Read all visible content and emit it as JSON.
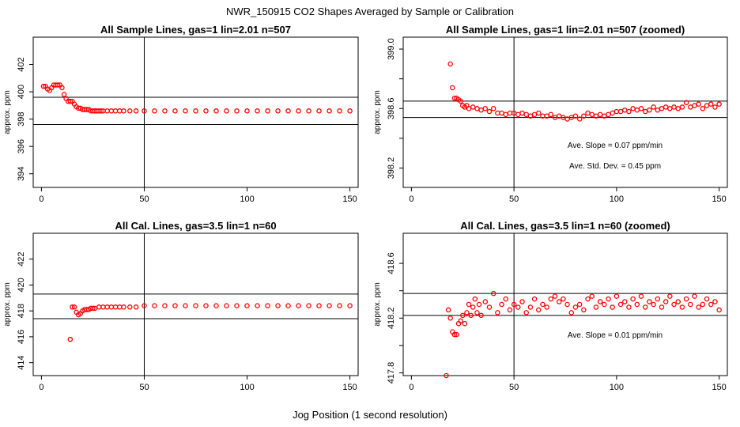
{
  "figure": {
    "title": "NWR_150915  CO2 Shapes Averaged by Sample or Calibration",
    "xlabel": "Jog Position (1 second resolution)"
  },
  "chart_data": [
    {
      "type": "scatter",
      "title": "All Sample Lines, gas=1 lin=2.01 n=507",
      "xlabel": "",
      "ylabel": "approx. ppm",
      "xlim": [
        -4,
        154
      ],
      "ylim": [
        393,
        404
      ],
      "xticks": [
        0,
        50,
        100,
        150
      ],
      "yticks": [
        394,
        396,
        398,
        400,
        402
      ],
      "ref_lines": {
        "vertical": [
          50
        ],
        "horizontal": [
          397.6,
          399.6
        ]
      },
      "marker_color": "#ff0000",
      "series": [
        {
          "values_note": "",
          "x": [
            1,
            2,
            3,
            4,
            5,
            6,
            7,
            8,
            9,
            10,
            11,
            12,
            13,
            14,
            15,
            16,
            17,
            18,
            19,
            20,
            21,
            22,
            23,
            24,
            25,
            26,
            27,
            28,
            29,
            30,
            32,
            34,
            36,
            38,
            40,
            43,
            46,
            50,
            55,
            60,
            65,
            70,
            75,
            80,
            85,
            90,
            95,
            100,
            105,
            110,
            115,
            120,
            125,
            130,
            135,
            140,
            145,
            150
          ],
          "y": [
            400.4,
            400.4,
            400.2,
            400.1,
            400.3,
            400.5,
            400.5,
            400.5,
            400.5,
            400.3,
            399.8,
            399.5,
            399.3,
            399.3,
            399.3,
            399.1,
            398.9,
            398.8,
            398.8,
            398.7,
            398.7,
            398.7,
            398.7,
            398.6,
            398.6,
            398.6,
            398.6,
            398.6,
            398.6,
            398.6,
            398.6,
            398.6,
            398.6,
            398.6,
            398.6,
            398.6,
            398.6,
            398.6,
            398.6,
            398.6,
            398.6,
            398.6,
            398.6,
            398.6,
            398.6,
            398.6,
            398.6,
            398.6,
            398.6,
            398.6,
            398.6,
            398.6,
            398.6,
            398.6,
            398.6,
            398.6,
            398.6,
            398.6
          ]
        }
      ]
    },
    {
      "type": "scatter",
      "title": "All Sample Lines, gas=1 lin=2.01 n=507 (zoomed)",
      "xlabel": "",
      "ylabel": "approx. ppm",
      "xlim": [
        -4,
        154
      ],
      "ylim": [
        398.07,
        399.08
      ],
      "xticks": [
        0,
        50,
        100,
        150
      ],
      "yticks": [
        398.2,
        398.6,
        399.0
      ],
      "minor_yticks": [
        398.4,
        398.8
      ],
      "ref_lines": {
        "vertical": [
          50
        ],
        "horizontal": [
          398.54,
          398.65
        ]
      },
      "annotations": [
        "Ave. Slope =  0.07  ppm/min",
        "Ave. Std. Dev. =  0.45  ppm"
      ],
      "marker_color": "#ff0000",
      "series": [
        {
          "x": [
            19,
            20,
            21,
            22,
            23,
            24,
            25,
            26,
            27,
            28,
            30,
            32,
            34,
            36,
            38,
            40,
            42,
            44,
            46,
            48,
            50,
            52,
            54,
            56,
            58,
            60,
            62,
            64,
            66,
            68,
            70,
            72,
            74,
            76,
            78,
            80,
            82,
            84,
            86,
            88,
            90,
            92,
            94,
            96,
            98,
            100,
            102,
            104,
            106,
            108,
            110,
            112,
            114,
            116,
            118,
            120,
            122,
            124,
            126,
            128,
            130,
            132,
            134,
            136,
            138,
            140,
            142,
            144,
            146,
            148,
            150
          ],
          "y": [
            398.9,
            398.74,
            398.67,
            398.67,
            398.66,
            398.65,
            398.62,
            398.61,
            398.62,
            398.6,
            398.61,
            398.6,
            398.59,
            398.6,
            398.58,
            398.6,
            398.57,
            398.57,
            398.56,
            398.57,
            398.57,
            398.56,
            398.57,
            398.56,
            398.55,
            398.56,
            398.57,
            398.55,
            398.55,
            398.56,
            398.54,
            398.55,
            398.54,
            398.53,
            398.54,
            398.55,
            398.53,
            398.55,
            398.57,
            398.56,
            398.55,
            398.56,
            398.55,
            398.56,
            398.57,
            398.58,
            398.58,
            398.59,
            398.58,
            398.6,
            398.59,
            398.6,
            398.58,
            398.59,
            398.61,
            398.59,
            398.6,
            398.61,
            398.6,
            398.61,
            398.6,
            398.61,
            398.64,
            398.61,
            398.62,
            398.63,
            398.6,
            398.62,
            398.63,
            398.61,
            398.63
          ]
        }
      ]
    },
    {
      "type": "scatter",
      "title": "All Cal. Lines, gas=3.5 lin=1 n=60",
      "xlabel": "",
      "ylabel": "approx. ppm",
      "xlim": [
        -4,
        154
      ],
      "ylim": [
        413,
        424
      ],
      "xticks": [
        0,
        50,
        100,
        150
      ],
      "yticks": [
        414,
        416,
        418,
        420,
        422
      ],
      "ref_lines": {
        "vertical": [
          50
        ],
        "horizontal": [
          417.4,
          419.3
        ]
      },
      "marker_color": "#ff0000",
      "series": [
        {
          "x": [
            14,
            15,
            16,
            17,
            18,
            19,
            20,
            21,
            22,
            23,
            24,
            25,
            26,
            28,
            30,
            32,
            34,
            36,
            38,
            40,
            43,
            46,
            50,
            55,
            60,
            65,
            70,
            75,
            80,
            85,
            90,
            95,
            100,
            105,
            110,
            115,
            120,
            125,
            130,
            135,
            140,
            145,
            150
          ],
          "y": [
            415.8,
            418.3,
            418.3,
            417.9,
            417.7,
            417.8,
            418.0,
            418.1,
            418.1,
            418.1,
            418.2,
            418.2,
            418.2,
            418.3,
            418.3,
            418.3,
            418.3,
            418.3,
            418.3,
            418.3,
            418.3,
            418.3,
            418.4,
            418.4,
            418.4,
            418.4,
            418.4,
            418.4,
            418.4,
            418.4,
            418.4,
            418.4,
            418.4,
            418.4,
            418.4,
            418.4,
            418.4,
            418.4,
            418.4,
            418.4,
            418.4,
            418.4,
            418.4
          ]
        }
      ]
    },
    {
      "type": "scatter",
      "title": "All Cal. Lines, gas=3.5 lin=1 n=60 (zoomed)",
      "xlabel": "",
      "ylabel": "approx. ppm",
      "xlim": [
        -4,
        154
      ],
      "ylim": [
        417.78,
        418.82
      ],
      "xticks": [
        0,
        50,
        100,
        150
      ],
      "yticks": [
        417.8,
        418.2,
        418.6
      ],
      "minor_yticks": [
        418.0,
        418.4
      ],
      "ref_lines": {
        "vertical": [
          50
        ],
        "horizontal": [
          418.22,
          418.38
        ]
      },
      "annotations": [
        "Ave. Slope =  0.01  ppm/min"
      ],
      "marker_color": "#ff0000",
      "series": [
        {
          "x": [
            17,
            18,
            19,
            20,
            21,
            22,
            23,
            24,
            25,
            26,
            27,
            28,
            29,
            30,
            31,
            32,
            33,
            34,
            36,
            38,
            40,
            42,
            44,
            46,
            48,
            50,
            52,
            54,
            56,
            58,
            60,
            62,
            64,
            66,
            68,
            70,
            72,
            74,
            76,
            78,
            80,
            82,
            84,
            86,
            88,
            90,
            92,
            94,
            96,
            98,
            100,
            102,
            104,
            106,
            108,
            110,
            112,
            114,
            116,
            118,
            120,
            122,
            124,
            126,
            128,
            130,
            132,
            134,
            136,
            138,
            140,
            142,
            144,
            146,
            148,
            150
          ],
          "y": [
            417.78,
            418.26,
            418.2,
            418.1,
            418.08,
            418.08,
            418.16,
            418.18,
            418.22,
            418.16,
            418.24,
            418.3,
            418.22,
            418.28,
            418.34,
            418.24,
            418.3,
            418.22,
            418.32,
            418.28,
            418.38,
            418.24,
            418.3,
            418.34,
            418.26,
            418.3,
            418.28,
            418.32,
            418.24,
            418.28,
            418.34,
            418.26,
            418.3,
            418.28,
            418.34,
            418.36,
            418.32,
            418.34,
            418.3,
            418.24,
            418.28,
            418.3,
            418.26,
            418.34,
            418.36,
            418.28,
            418.32,
            418.3,
            418.34,
            418.28,
            418.36,
            418.3,
            418.32,
            418.28,
            418.34,
            418.3,
            418.36,
            418.28,
            418.32,
            418.3,
            418.34,
            418.28,
            418.32,
            418.36,
            418.3,
            418.32,
            418.28,
            418.34,
            418.3,
            418.36,
            418.28,
            418.3,
            418.34,
            418.3,
            418.32,
            418.26
          ]
        }
      ]
    }
  ]
}
